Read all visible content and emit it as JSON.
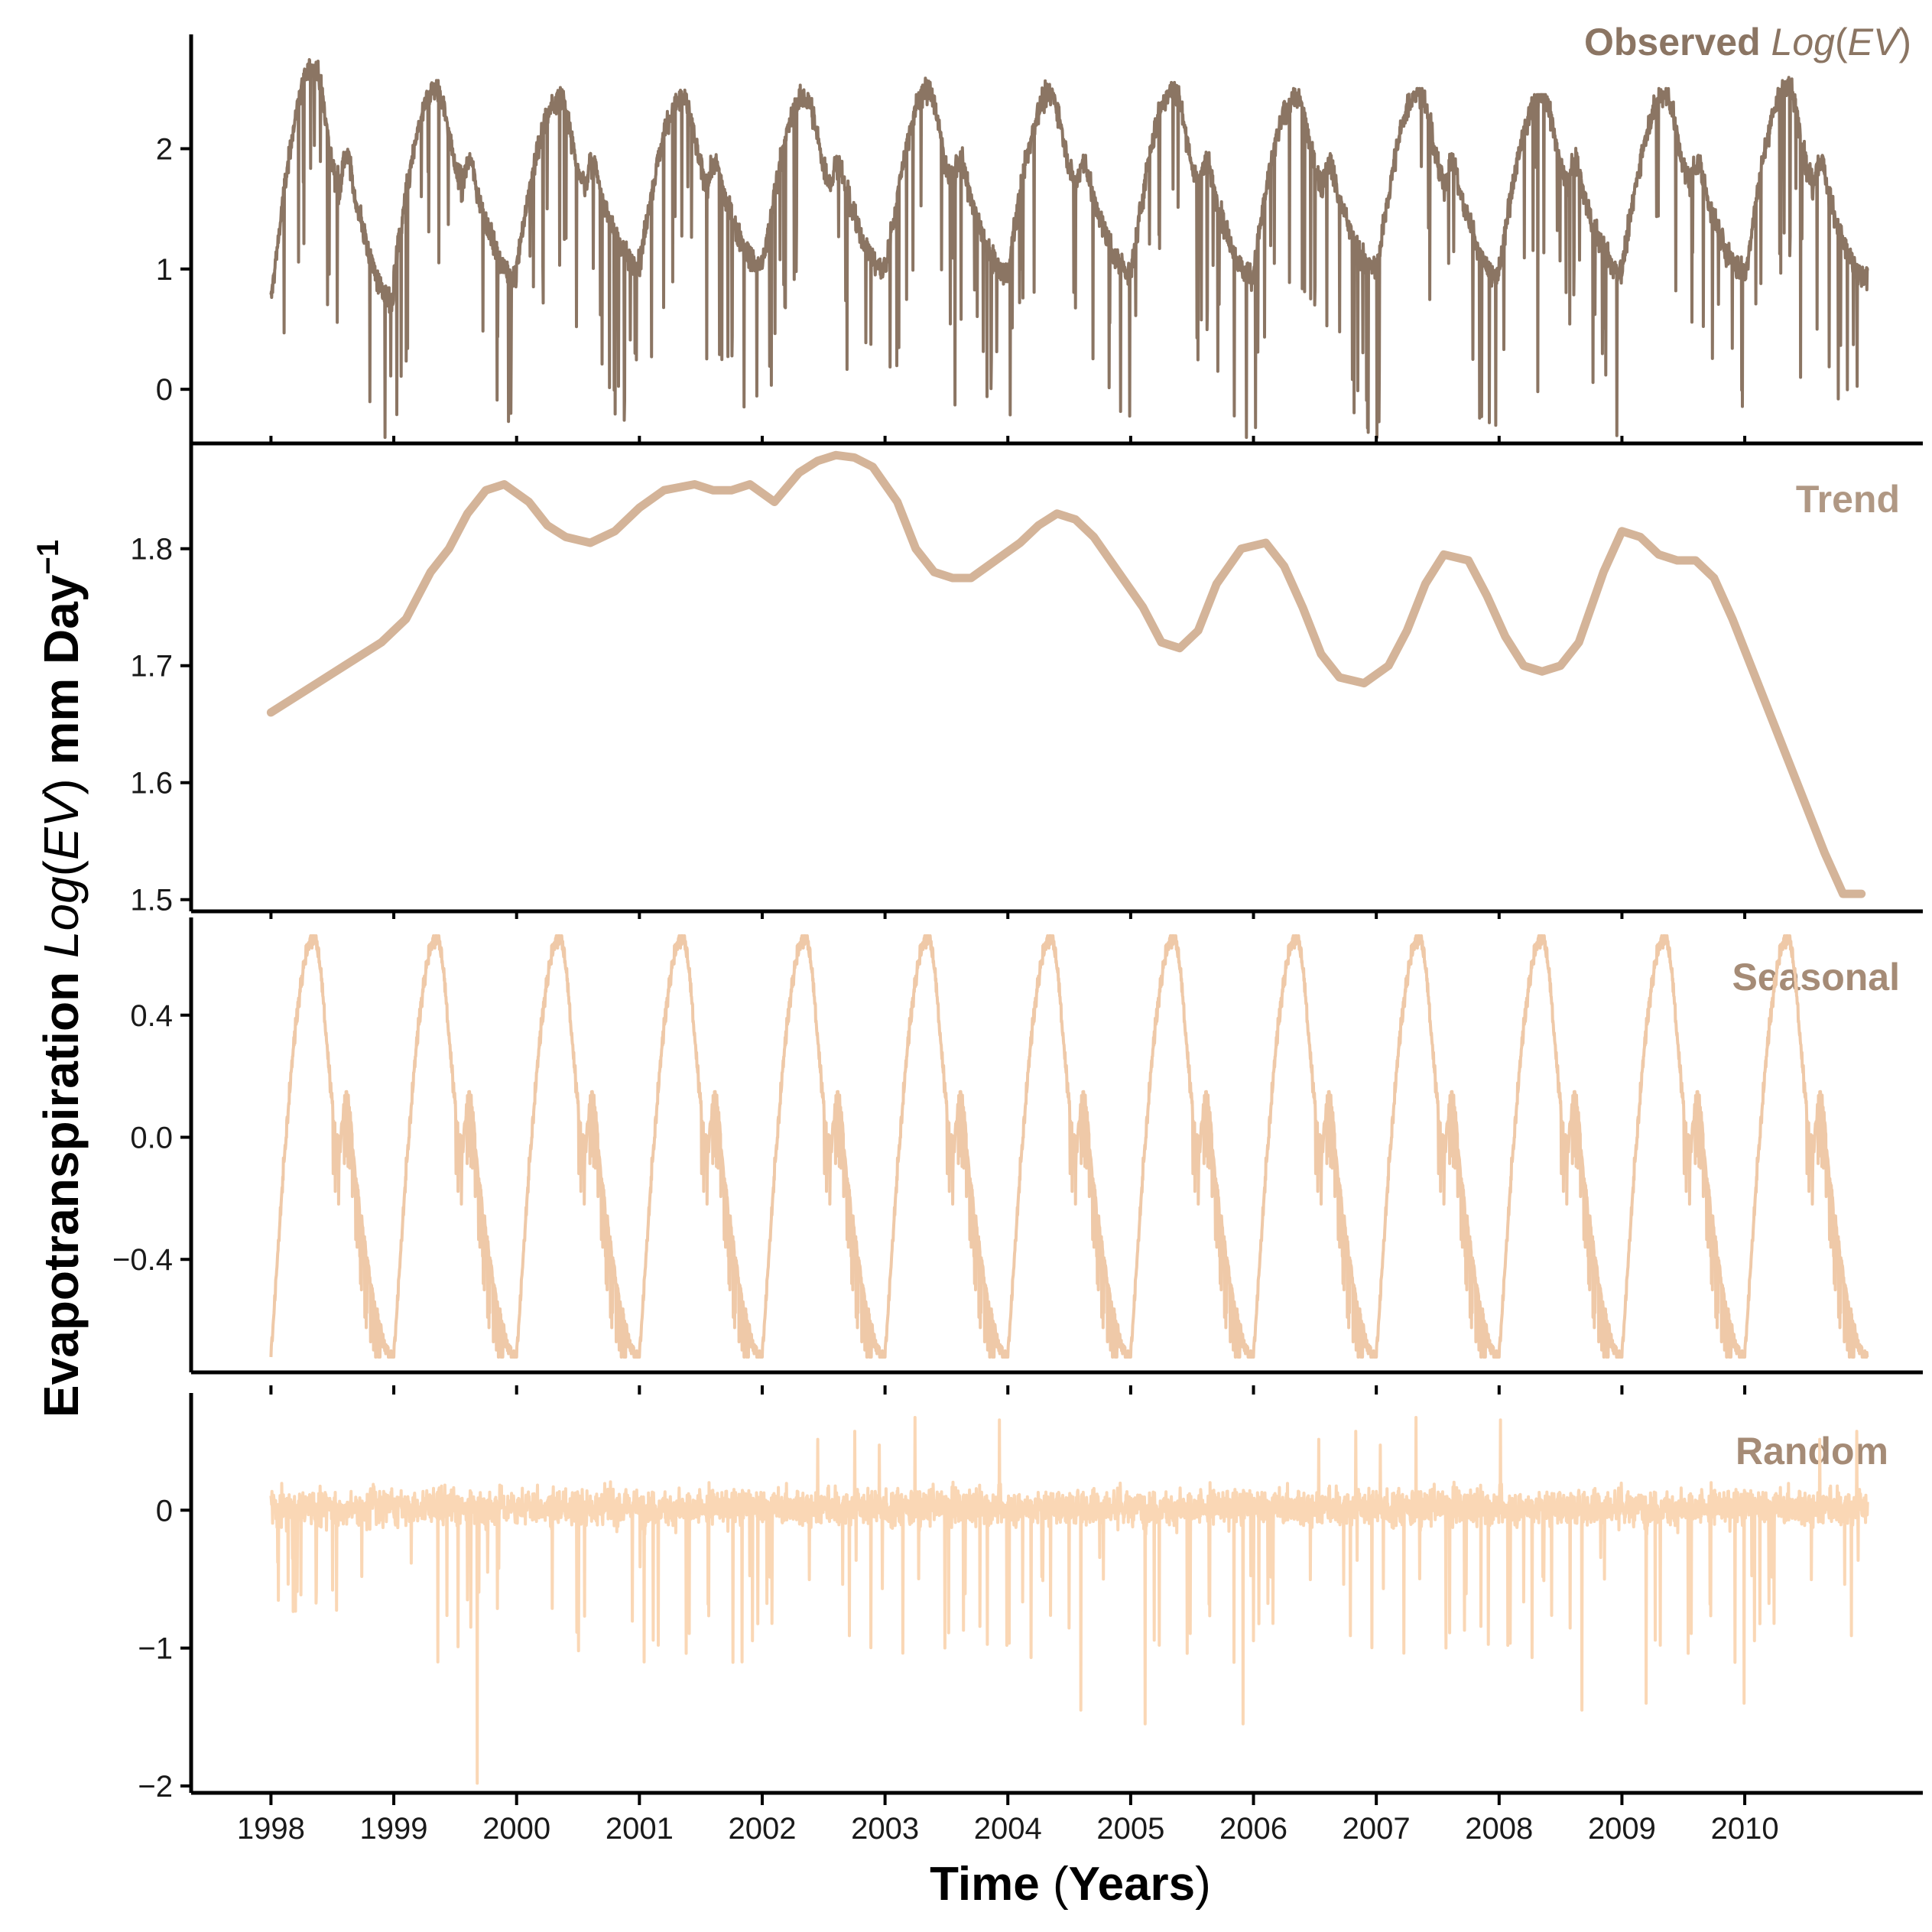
{
  "figure": {
    "y_axis_title": {
      "prefix": "Evapotranspiration ",
      "italic_part": "Log",
      "paren_open": "(",
      "italic_var": "EV",
      "paren_close": ")",
      "suffix": " mm Day",
      "superscript": "−1"
    },
    "x_axis_title": {
      "main": "Time ",
      "paren_open": "(",
      "inner": "Years",
      "paren_close": ")"
    }
  },
  "chart_data": [
    {
      "type": "line",
      "panel": "observed",
      "title": "Observed",
      "title_italic": "Log",
      "title_paren_open": "(",
      "title_italic_var": "EV",
      "title_paren_close": ")",
      "color": "#8b7563",
      "ylim": [
        -0.45,
        2.95
      ],
      "yticks": [
        0,
        1,
        2
      ],
      "ytick_labels": [
        "0",
        "1",
        "2"
      ],
      "x_range": [
        1998.0,
        2011.0
      ],
      "series_peaks": [
        2.75,
        2.65,
        2.55,
        2.55,
        2.65,
        2.6,
        2.6,
        2.55,
        2.5,
        2.5,
        2.45,
        2.5,
        2.7
      ],
      "series_troughs": [
        0.7,
        1.0,
        1.1,
        1.1,
        1.15,
        1.0,
        1.05,
        0.9,
        1.0,
        0.9,
        0.9,
        0.95,
        1.0
      ],
      "spike_minima": [
        -0.22,
        -0.32,
        0.3,
        0.02,
        -0.05,
        -0.13,
        -0.12,
        0.15,
        0.2,
        0.05,
        -0.02,
        0.15,
        0.1
      ]
    },
    {
      "type": "line",
      "panel": "trend",
      "title": "Trend",
      "color": "#d4b499",
      "ylim": [
        1.49,
        1.89
      ],
      "yticks": [
        1.5,
        1.6,
        1.7,
        1.8
      ],
      "ytick_labels": [
        "1.5",
        "1.6",
        "1.7",
        "1.8"
      ],
      "x": [
        1998.0,
        1998.3,
        1998.6,
        1998.9,
        1999.1,
        1999.3,
        1999.45,
        1999.6,
        1999.75,
        1999.9,
        2000.1,
        2000.25,
        2000.4,
        2000.6,
        2000.8,
        2001.0,
        2001.2,
        2001.45,
        2001.6,
        2001.75,
        2001.9,
        2002.1,
        2002.3,
        2002.45,
        2002.6,
        2002.75,
        2002.9,
        2003.1,
        2003.25,
        2003.4,
        2003.55,
        2003.7,
        2003.9,
        2004.1,
        2004.25,
        2004.4,
        2004.55,
        2004.7,
        2004.9,
        2005.1,
        2005.25,
        2005.4,
        2005.55,
        2005.7,
        2005.9,
        2006.1,
        2006.25,
        2006.4,
        2006.55,
        2006.7,
        2006.9,
        2007.1,
        2007.25,
        2007.4,
        2007.55,
        2007.75,
        2007.9,
        2008.05,
        2008.2,
        2008.35,
        2008.5,
        2008.65,
        2008.85,
        2009.0,
        2009.15,
        2009.3,
        2009.45,
        2009.6,
        2009.75,
        2009.9,
        2010.05,
        2010.2,
        2010.35,
        2010.5,
        2010.65,
        2010.8,
        2010.95
      ],
      "y": [
        1.66,
        1.68,
        1.7,
        1.72,
        1.74,
        1.78,
        1.8,
        1.83,
        1.85,
        1.855,
        1.84,
        1.82,
        1.81,
        1.805,
        1.815,
        1.835,
        1.85,
        1.855,
        1.85,
        1.85,
        1.855,
        1.84,
        1.865,
        1.875,
        1.88,
        1.878,
        1.87,
        1.84,
        1.8,
        1.78,
        1.775,
        1.775,
        1.79,
        1.805,
        1.82,
        1.83,
        1.825,
        1.81,
        1.78,
        1.75,
        1.72,
        1.715,
        1.73,
        1.77,
        1.8,
        1.805,
        1.785,
        1.75,
        1.71,
        1.69,
        1.685,
        1.7,
        1.73,
        1.77,
        1.795,
        1.79,
        1.76,
        1.725,
        1.7,
        1.695,
        1.7,
        1.72,
        1.78,
        1.815,
        1.81,
        1.795,
        1.79,
        1.79,
        1.775,
        1.74,
        1.7,
        1.66,
        1.62,
        1.58,
        1.54,
        1.505,
        1.505
      ]
    },
    {
      "type": "line",
      "panel": "seasonal",
      "title": "Seasonal",
      "color": "#efc9a8",
      "ylim": [
        -0.77,
        0.72
      ],
      "yticks": [
        -0.4,
        0.0,
        0.4
      ],
      "ytick_labels": [
        "−0.4",
        "0.0",
        "0.4"
      ],
      "x_range": [
        1998.0,
        2011.0
      ],
      "cycle_period_years": 1,
      "cycle_peak": 0.66,
      "cycle_trough": -0.72,
      "cycle_summer_bump": 0.13
    },
    {
      "type": "line",
      "panel": "random",
      "title": "Random",
      "color": "#fad7b5",
      "ylim": [
        -2.05,
        0.85
      ],
      "yticks": [
        -2,
        -1,
        0
      ],
      "ytick_labels": [
        "−2",
        "−1",
        "0"
      ],
      "x_range": [
        1998.0,
        2011.0
      ],
      "max_value": 0.78,
      "min_value": -1.98,
      "spike_minima": [
        -1.65,
        -1.98,
        -1.3,
        -1.1,
        -1.7,
        -1.55,
        -1.45,
        -1.55,
        -1.15,
        -1.5,
        -1.45,
        -1.4,
        -1.2
      ]
    }
  ],
  "x_axis": {
    "ticks": [
      1998,
      1999,
      2000,
      2001,
      2002,
      2003,
      2004,
      2005,
      2006,
      2007,
      2008,
      2009,
      2010
    ],
    "tick_labels": [
      "1998",
      "1999",
      "2000",
      "2001",
      "2002",
      "2003",
      "2004",
      "2005",
      "2006",
      "2007",
      "2008",
      "2009",
      "2010"
    ],
    "range": [
      1997.35,
      2011.45
    ]
  }
}
